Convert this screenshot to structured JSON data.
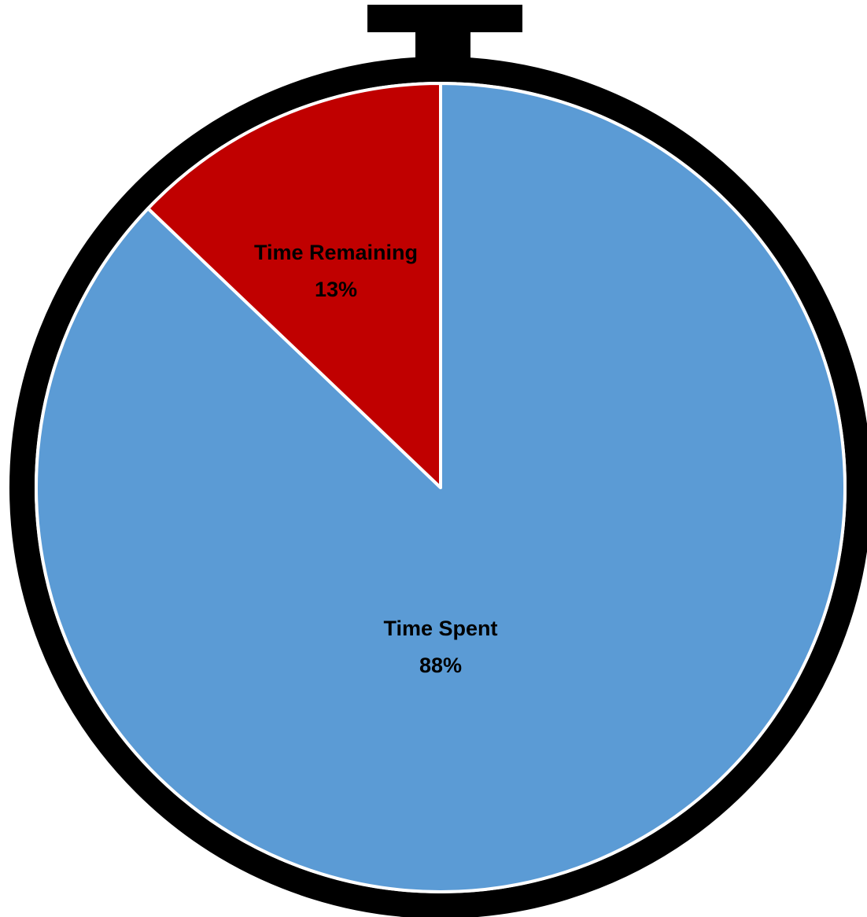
{
  "chart_data": {
    "type": "pie",
    "slices": [
      {
        "label": "Time Spent",
        "value": 88,
        "value_label": "88%",
        "color": "#5B9BD5"
      },
      {
        "label": "Time Remaining",
        "value": 13,
        "value_label": "13%",
        "color": "#C00000"
      }
    ],
    "start_angle_deg": 0,
    "direction": "clockwise",
    "slice_border_color": "#ffffff",
    "frame": {
      "style": "stopwatch",
      "color": "#000000"
    }
  }
}
